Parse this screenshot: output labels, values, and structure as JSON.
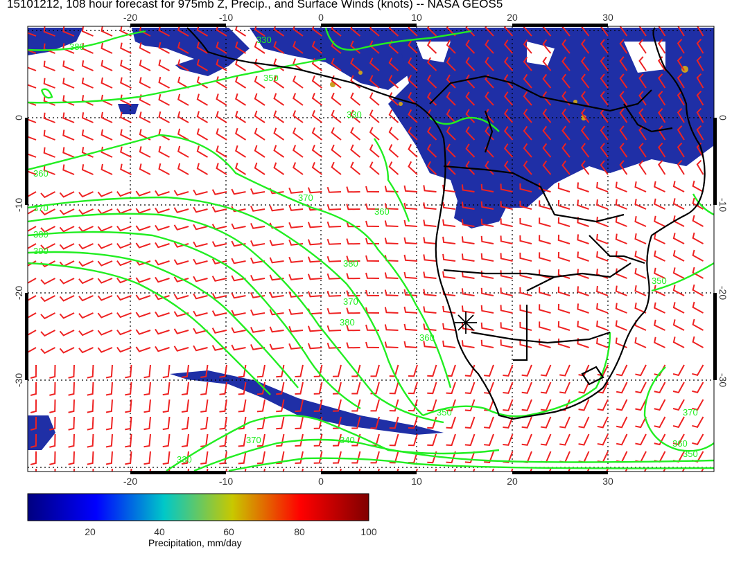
{
  "title": "15101212, 108 hour forecast for 975mb Z, Precip., and Surface Winds (knots) -- NASA GEOS5",
  "map": {
    "lon_range": [
      -30,
      41
    ],
    "lat_range": [
      -40,
      10
    ],
    "lon_ticks": [
      "-20",
      "-10",
      "0",
      "10",
      "20",
      "30"
    ],
    "lat_ticks": [
      "0",
      "-10",
      "-20",
      "-30"
    ],
    "grid": "dotted",
    "marker": "station-star"
  },
  "contours": {
    "labels": [
      "380",
      "330",
      "350",
      "360",
      "370",
      "380",
      "390",
      "370",
      "360",
      "380",
      "350",
      "360",
      "370",
      "380",
      "340",
      "370",
      "330",
      "350",
      "360",
      "370",
      "350",
      "330"
    ]
  },
  "colorbar": {
    "ticks": [
      "20",
      "40",
      "60",
      "80",
      "100"
    ],
    "label": "Precipitation, mm/day",
    "colors": [
      "#000080",
      "#0000ff",
      "#00c8c8",
      "#c8c800",
      "#ff0000",
      "#800000"
    ]
  },
  "colors": {
    "contour": "#22ee22",
    "wind": "#ee2222",
    "coast": "#000000",
    "precip": "#1a2ea8"
  }
}
